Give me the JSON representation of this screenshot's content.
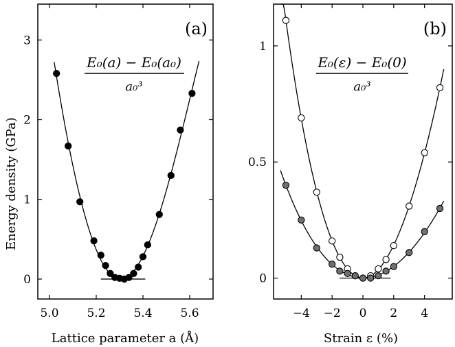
{
  "figure": {
    "ylabel": "Energy density (GPa)"
  },
  "chart_data": [
    {
      "type": "scatter",
      "panel_label": "(a)",
      "formula": {
        "numerator": "E₀(a) − E₀(a₀)",
        "denominator": "a₀³"
      },
      "xlabel": "Lattice parameter a (Å)",
      "ylabel": "Energy density (GPa)",
      "xlim": [
        4.95,
        5.7
      ],
      "ylim": [
        -0.25,
        3.45
      ],
      "xticks": [
        5.0,
        5.2,
        5.4,
        5.6
      ],
      "xtick_labels": [
        "5.0",
        "5.2",
        "5.4",
        "5.6"
      ],
      "yticks": [
        0,
        1,
        2,
        3
      ],
      "ytick_labels": [
        "0",
        "1",
        "2",
        "3"
      ],
      "grid": false,
      "series": [
        {
          "marker": "filled-circle",
          "color": "#000000",
          "x": [
            5.03,
            5.08,
            5.13,
            5.19,
            5.22,
            5.24,
            5.26,
            5.28,
            5.3,
            5.32,
            5.34,
            5.36,
            5.38,
            5.4,
            5.42,
            5.47,
            5.52,
            5.56,
            5.61
          ],
          "y": [
            2.58,
            1.67,
            0.97,
            0.48,
            0.3,
            0.17,
            0.07,
            0.02,
            0.01,
            0.0,
            0.02,
            0.07,
            0.15,
            0.28,
            0.43,
            0.81,
            1.3,
            1.87,
            2.33
          ]
        }
      ],
      "fit_curve": {
        "x0": 5.31,
        "x": [
          5.02,
          5.64
        ]
      },
      "baseline": {
        "x": [
          5.22,
          5.41
        ],
        "y": 0
      }
    },
    {
      "type": "scatter",
      "panel_label": "(b)",
      "formula": {
        "numerator": "E₀(ε) − E₀(0)",
        "denominator": "a₀³"
      },
      "xlabel": "Strain ε (%)",
      "ylabel": "",
      "xlim": [
        -5.8,
        5.8
      ],
      "ylim": [
        -0.09,
        1.18
      ],
      "xticks": [
        -4,
        -2,
        0,
        2,
        4
      ],
      "xtick_labels": [
        "−4",
        "−2",
        "0",
        "2",
        "4"
      ],
      "yticks": [
        0,
        0.5,
        1
      ],
      "ytick_labels": [
        "0",
        "0.5",
        "1"
      ],
      "grid": false,
      "series": [
        {
          "marker": "open-circle",
          "color": "#ffffff",
          "x": [
            -5,
            -4,
            -3,
            -2,
            -1.5,
            -1,
            -0.5,
            0,
            0.5,
            1,
            1.5,
            2,
            3,
            4,
            5
          ],
          "y": [
            1.11,
            0.69,
            0.37,
            0.16,
            0.09,
            0.04,
            0.01,
            0.0,
            0.01,
            0.04,
            0.08,
            0.14,
            0.31,
            0.54,
            0.82
          ]
        },
        {
          "marker": "gray-filled-circle",
          "color": "#707070",
          "x": [
            -5,
            -4,
            -3,
            -2,
            -1.5,
            -1,
            -0.5,
            0,
            0.5,
            1,
            1.5,
            2,
            3,
            4,
            5
          ],
          "y": [
            0.4,
            0.25,
            0.13,
            0.06,
            0.03,
            0.02,
            0.01,
            0.0,
            0.0,
            0.01,
            0.03,
            0.05,
            0.11,
            0.2,
            0.3
          ]
        }
      ],
      "baseline": {
        "x": [
          -1.5,
          1.8
        ],
        "y": 0
      }
    }
  ]
}
